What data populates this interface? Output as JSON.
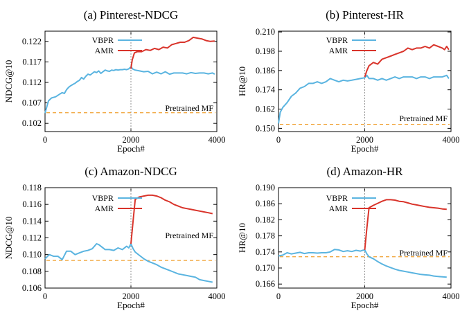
{
  "chart_data": [
    {
      "type": "line",
      "title": "(a) Pinterest-NDCG",
      "xlabel": "Epoch#",
      "ylabel": "NDCG@10",
      "xlim": [
        0,
        4000
      ],
      "ylim": [
        0.1,
        0.1245
      ],
      "xticks": [
        "0",
        "2000",
        "4000"
      ],
      "yticks": [
        "0.102",
        "0.107",
        "0.112",
        "0.117",
        "0.122"
      ],
      "legend": "top-left",
      "series": [
        {
          "name": "VBPR",
          "color": "#5ab4e0",
          "x": [
            0,
            40,
            80,
            150,
            250,
            350,
            400,
            450,
            500,
            550,
            600,
            650,
            700,
            750,
            800,
            850,
            900,
            950,
            1000,
            1050,
            1100,
            1150,
            1200,
            1250,
            1300,
            1350,
            1400,
            1450,
            1500,
            1550,
            1600,
            1650,
            1700,
            1750,
            1800,
            1850,
            1900,
            1950,
            2000,
            2050,
            2100,
            2200,
            2300,
            2400,
            2500,
            2600,
            2700,
            2800,
            2900,
            3000,
            3100,
            3200,
            3300,
            3400,
            3500,
            3600,
            3700,
            3800,
            3900,
            3950
          ],
          "y": [
            0.1045,
            0.106,
            0.1075,
            0.1082,
            0.1085,
            0.1092,
            0.1095,
            0.1093,
            0.1102,
            0.1108,
            0.1112,
            0.1115,
            0.1118,
            0.1122,
            0.1125,
            0.1132,
            0.1128,
            0.1135,
            0.114,
            0.1138,
            0.1142,
            0.1146,
            0.1144,
            0.1148,
            0.1142,
            0.1146,
            0.115,
            0.1148,
            0.1147,
            0.115,
            0.1149,
            0.1151,
            0.115,
            0.1151,
            0.1151,
            0.1152,
            0.1151,
            0.1153,
            0.1158,
            0.1152,
            0.115,
            0.1148,
            0.1146,
            0.1147,
            0.1141,
            0.1145,
            0.1141,
            0.1146,
            0.114,
            0.1143,
            0.1143,
            0.1143,
            0.1141,
            0.1144,
            0.1142,
            0.1143,
            0.1143,
            0.1141,
            0.1143,
            0.114
          ]
        },
        {
          "name": "AMR",
          "color": "#d9342b",
          "x": [
            2000,
            2030,
            2080,
            2150,
            2250,
            2350,
            2450,
            2550,
            2650,
            2750,
            2850,
            2950,
            3050,
            3150,
            3250,
            3350,
            3450,
            3550,
            3650,
            3750,
            3850,
            3950
          ],
          "y": [
            0.1153,
            0.1175,
            0.1192,
            0.1195,
            0.1195,
            0.12,
            0.1198,
            0.1203,
            0.12,
            0.1206,
            0.1204,
            0.1212,
            0.1215,
            0.1218,
            0.1218,
            0.1222,
            0.123,
            0.1228,
            0.1226,
            0.1222,
            0.122,
            0.1221
          ]
        }
      ],
      "baseline": {
        "name": "Pretrained MF",
        "y": 0.1046,
        "color": "#f0a030"
      }
    },
    {
      "type": "line",
      "title": "(b) Pinterest-HR",
      "xlabel": "Epoch#",
      "ylabel": "HR@10",
      "xlim": [
        0,
        4000
      ],
      "ylim": [
        0.148,
        0.2105
      ],
      "xticks": [
        "0",
        "2000",
        "4000"
      ],
      "yticks": [
        "0.150",
        "0.162",
        "0.174",
        "0.186",
        "0.198",
        "0.210"
      ],
      "legend": "top-left",
      "series": [
        {
          "name": "VBPR",
          "color": "#5ab4e0",
          "x": [
            0,
            40,
            100,
            200,
            300,
            400,
            500,
            600,
            700,
            800,
            900,
            1000,
            1100,
            1200,
            1300,
            1400,
            1500,
            1600,
            1700,
            1800,
            1900,
            2000,
            2050,
            2100,
            2200,
            2300,
            2400,
            2500,
            2600,
            2700,
            2800,
            2900,
            3000,
            3100,
            3200,
            3300,
            3400,
            3500,
            3600,
            3700,
            3800,
            3900,
            3950
          ],
          "y": [
            0.153,
            0.16,
            0.163,
            0.166,
            0.17,
            0.172,
            0.175,
            0.176,
            0.178,
            0.178,
            0.179,
            0.178,
            0.179,
            0.181,
            0.18,
            0.179,
            0.18,
            0.1795,
            0.18,
            0.1805,
            0.181,
            0.1815,
            0.183,
            0.181,
            0.181,
            0.18,
            0.181,
            0.18,
            0.181,
            0.182,
            0.181,
            0.182,
            0.182,
            0.182,
            0.181,
            0.182,
            0.182,
            0.181,
            0.182,
            0.182,
            0.182,
            0.183,
            0.181
          ]
        },
        {
          "name": "AMR",
          "color": "#d9342b",
          "x": [
            2000,
            2050,
            2100,
            2200,
            2300,
            2400,
            2500,
            2600,
            2700,
            2800,
            2900,
            3000,
            3100,
            3200,
            3300,
            3400,
            3500,
            3600,
            3700,
            3800,
            3850,
            3900,
            3950
          ],
          "y": [
            0.182,
            0.186,
            0.189,
            0.191,
            0.19,
            0.193,
            0.194,
            0.195,
            0.196,
            0.197,
            0.198,
            0.2,
            0.199,
            0.2,
            0.2,
            0.201,
            0.2,
            0.202,
            0.201,
            0.2,
            0.199,
            0.201,
            0.199
          ]
        }
      ],
      "baseline": {
        "name": "Pretrained MF",
        "y": 0.1525,
        "color": "#f0a030"
      }
    },
    {
      "type": "line",
      "title": "(c) Amazon-NDCG",
      "xlabel": "Epoch#",
      "ylabel": "NDCG@10",
      "xlim": [
        0,
        4000
      ],
      "ylim": [
        0.106,
        0.118
      ],
      "xticks": [
        "0",
        "2000",
        "4000"
      ],
      "yticks": [
        "0.106",
        "0.108",
        "0.110",
        "0.112",
        "0.114",
        "0.116",
        "0.118"
      ],
      "legend": "top-left",
      "series": [
        {
          "name": "VBPR",
          "color": "#5ab4e0",
          "x": [
            0,
            100,
            200,
            300,
            400,
            500,
            600,
            700,
            800,
            900,
            1000,
            1100,
            1200,
            1250,
            1300,
            1400,
            1500,
            1600,
            1700,
            1800,
            1900,
            1950,
            2000,
            2050,
            2100,
            2200,
            2300,
            2400,
            2500,
            2600,
            2700,
            2800,
            2900,
            3000,
            3100,
            3200,
            3300,
            3400,
            3500,
            3600,
            3700,
            3800,
            3900
          ],
          "y": [
            0.1095,
            0.11,
            0.1098,
            0.1098,
            0.1094,
            0.1104,
            0.1104,
            0.11,
            0.1102,
            0.1104,
            0.1105,
            0.1107,
            0.1113,
            0.1112,
            0.111,
            0.1106,
            0.1106,
            0.1105,
            0.1108,
            0.1106,
            0.111,
            0.1108,
            0.1113,
            0.1107,
            0.1103,
            0.1099,
            0.1095,
            0.1092,
            0.109,
            0.1088,
            0.1085,
            0.1083,
            0.1081,
            0.1079,
            0.1077,
            0.1076,
            0.1075,
            0.1074,
            0.1073,
            0.107,
            0.1069,
            0.1068,
            0.1067
          ]
        },
        {
          "name": "AMR",
          "color": "#d9342b",
          "x": [
            2000,
            2050,
            2100,
            2200,
            2300,
            2400,
            2500,
            2600,
            2700,
            2800,
            2900,
            3000,
            3100,
            3200,
            3300,
            3400,
            3500,
            3600,
            3700,
            3800,
            3900
          ],
          "y": [
            0.1113,
            0.114,
            0.1166,
            0.1169,
            0.117,
            0.1171,
            0.1171,
            0.117,
            0.1168,
            0.1165,
            0.1163,
            0.116,
            0.1158,
            0.1156,
            0.1155,
            0.1154,
            0.1153,
            0.1152,
            0.1151,
            0.115,
            0.1149
          ]
        }
      ],
      "baseline": {
        "name": "Pretrained MF",
        "y": 0.1093,
        "color": "#f0a030"
      }
    },
    {
      "type": "line",
      "title": "(d) Amazon-HR",
      "xlabel": "Epoch#",
      "ylabel": "HR@10",
      "xlim": [
        0,
        4000
      ],
      "ylim": [
        0.165,
        0.19
      ],
      "xticks": [
        "0",
        "2000",
        "4000"
      ],
      "yticks": [
        "0.166",
        "0.170",
        "0.174",
        "0.178",
        "0.182",
        "0.186",
        "0.190"
      ],
      "legend": "top-left",
      "series": [
        {
          "name": "VBPR",
          "color": "#5ab4e0",
          "x": [
            0,
            100,
            200,
            300,
            400,
            500,
            600,
            700,
            800,
            900,
            1000,
            1100,
            1200,
            1300,
            1400,
            1500,
            1600,
            1700,
            1800,
            1900,
            1950,
            2000,
            2050,
            2100,
            2200,
            2300,
            2400,
            2500,
            2600,
            2700,
            2800,
            2900,
            3000,
            3100,
            3200,
            3300,
            3400,
            3500,
            3600,
            3700,
            3800,
            3900
          ],
          "y": [
            0.173,
            0.1732,
            0.1738,
            0.1735,
            0.1737,
            0.1739,
            0.1736,
            0.1738,
            0.1738,
            0.1737,
            0.1738,
            0.1738,
            0.174,
            0.1746,
            0.1745,
            0.1741,
            0.1743,
            0.1741,
            0.1744,
            0.1742,
            0.1744,
            0.1745,
            0.1735,
            0.1728,
            0.1723,
            0.1716,
            0.171,
            0.1705,
            0.1701,
            0.1697,
            0.1694,
            0.1692,
            0.169,
            0.1688,
            0.1686,
            0.1684,
            0.1683,
            0.1682,
            0.168,
            0.1679,
            0.1678,
            0.1677
          ]
        },
        {
          "name": "AMR",
          "color": "#d9342b",
          "x": [
            2000,
            2050,
            2100,
            2200,
            2300,
            2400,
            2500,
            2600,
            2700,
            2800,
            2900,
            3000,
            3100,
            3200,
            3300,
            3400,
            3500,
            3600,
            3700,
            3800,
            3900
          ],
          "y": [
            0.1745,
            0.18,
            0.185,
            0.1856,
            0.1861,
            0.1866,
            0.187,
            0.187,
            0.1869,
            0.1866,
            0.1865,
            0.1862,
            0.1859,
            0.1857,
            0.1855,
            0.1853,
            0.1851,
            0.185,
            0.1849,
            0.1847,
            0.1846
          ]
        }
      ],
      "baseline": {
        "name": "Pretrained MF",
        "y": 0.1728,
        "color": "#f0a030"
      }
    }
  ]
}
